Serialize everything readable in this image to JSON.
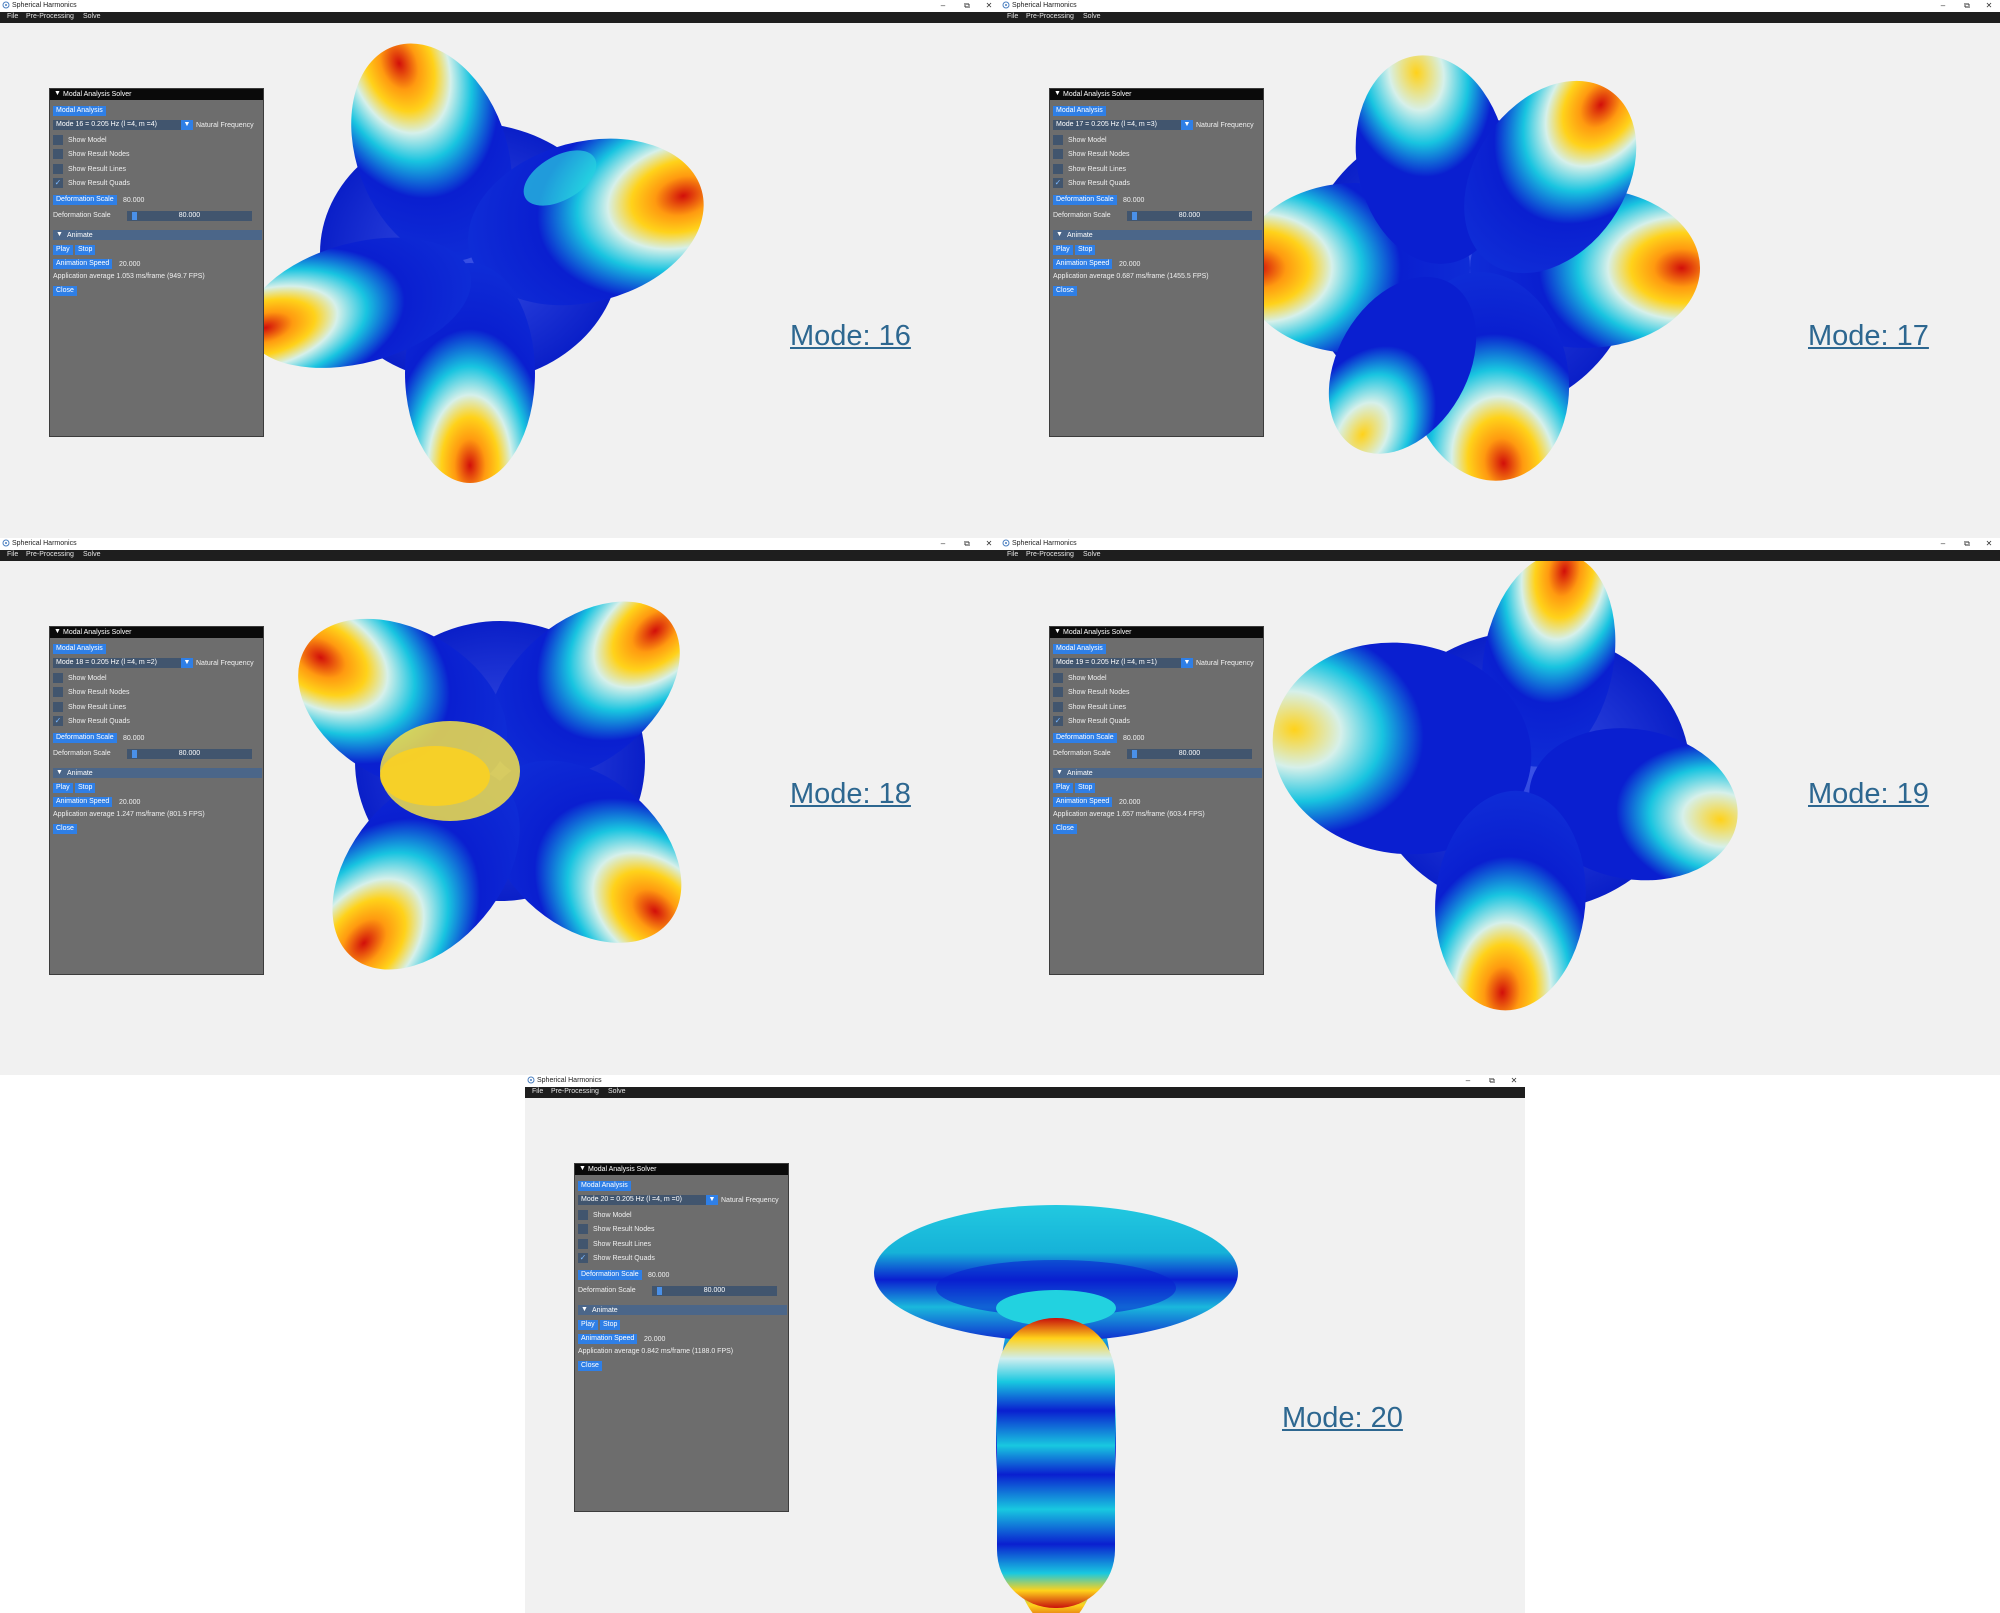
{
  "window_title": "Spherical Harmonics",
  "window_controls": {
    "minimize": "–",
    "restore": "⧉",
    "close": "✕"
  },
  "menu": {
    "file": "File",
    "preprocessing": "Pre-Processing",
    "solve": "Solve"
  },
  "panel": {
    "title": "Modal Analysis Solver",
    "modal_analysis_button": "Modal Analysis",
    "natural_frequency_label": "Natural Frequency",
    "show_model": "Show Model",
    "show_result_nodes": "Show Result Nodes",
    "show_result_lines": "Show Result Lines",
    "show_result_quads": "Show Result Quads",
    "deformation_scale_button": "Deformation Scale",
    "deformation_scale_value": "80.000",
    "deformation_scale_slider_label": "Deformation Scale",
    "deformation_scale_slider_value": "80.000",
    "animate_header": "Animate",
    "play_button": "Play",
    "stop_button": "Stop",
    "animation_speed_button": "Animation Speed",
    "animation_speed_value": "20.000",
    "close_button": "Close"
  },
  "windows": [
    {
      "mode_select": "Mode 16 = 0.205 Hz (l =4, m =4)",
      "perf": "Application average 1.053 ms/frame (949.7 FPS)",
      "label": "Mode: 16",
      "checkbox_states": [
        false,
        false,
        false,
        true
      ]
    },
    {
      "mode_select": "Mode 17 = 0.205 Hz (l =4, m =3)",
      "perf": "Application average 0.687 ms/frame (1455.5 FPS)",
      "label": "Mode: 17",
      "checkbox_states": [
        false,
        false,
        false,
        true
      ]
    },
    {
      "mode_select": "Mode 18 = 0.205 Hz (l =4, m =2)",
      "perf": "Application average 1.247 ms/frame (801.9 FPS)",
      "label": "Mode: 18",
      "checkbox_states": [
        false,
        false,
        false,
        true
      ]
    },
    {
      "mode_select": "Mode 19 = 0.205 Hz (l =4, m =1)",
      "perf": "Application average 1.657 ms/frame (603.4 FPS)",
      "label": "Mode: 19",
      "checkbox_states": [
        false,
        false,
        false,
        true
      ]
    },
    {
      "mode_select": "Mode 20 = 0.205 Hz (l =4, m =0)",
      "perf": "Application average 0.842 ms/frame (1188.0 FPS)",
      "label": "Mode: 20",
      "checkbox_states": [
        false,
        false,
        false,
        true
      ]
    }
  ],
  "colors": {
    "menubar": "#1e1e1e",
    "panel_bg": "#6d6d6d",
    "accent": "#2f7fe6",
    "field_bg": "#41556e",
    "mode_label": "#2d6790",
    "viewport": "#f1f1f1"
  }
}
